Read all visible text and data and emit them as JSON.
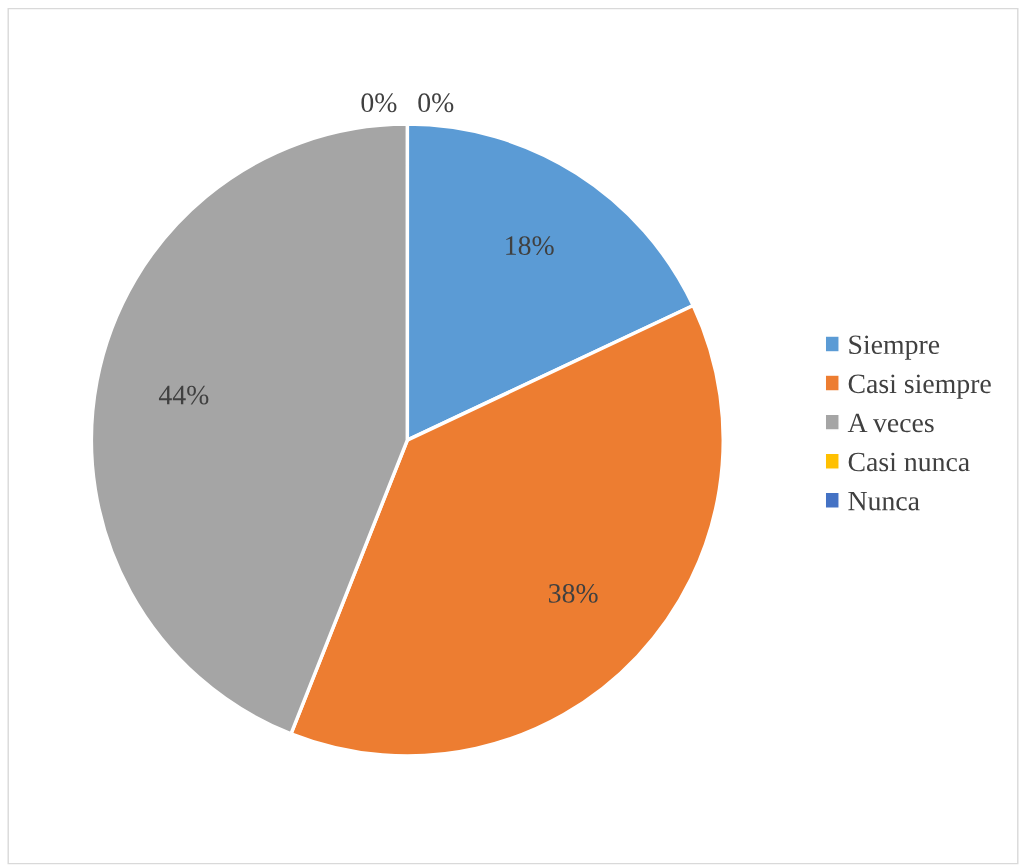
{
  "chart_data": {
    "type": "pie",
    "categories": [
      "Siempre",
      "Casi siempre",
      "A veces",
      "Casi nunca",
      "Nunca"
    ],
    "values": [
      18,
      38,
      44,
      0,
      0
    ],
    "colors": [
      "#5b9bd5",
      "#ed7d31",
      "#a5a5a5",
      "#ffc000",
      "#4472c4"
    ],
    "value_labels": [
      "18%",
      "38%",
      "44%",
      "0%",
      "0%"
    ],
    "legend": "right"
  }
}
